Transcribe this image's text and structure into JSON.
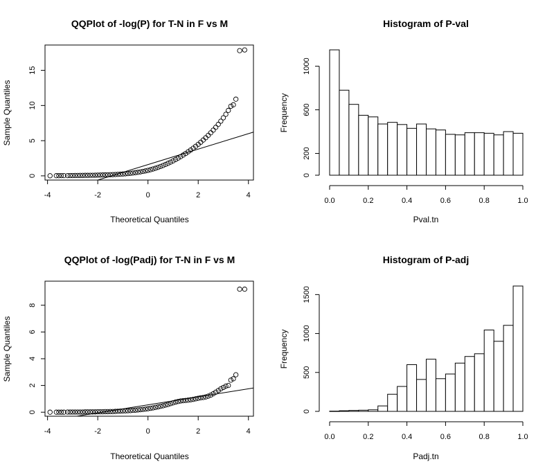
{
  "chart_data": [
    {
      "id": "qq_p",
      "type": "scatter",
      "title": "QQPlot of -log(P) for T-N in F vs M",
      "xlabel": "Theoretical Quantiles",
      "ylabel": "Sample Quantiles",
      "xlim": [
        -4.1,
        4.2
      ],
      "ylim": [
        -0.6,
        18.6
      ],
      "xticks": [
        -4,
        -2,
        0,
        2,
        4
      ],
      "yticks": [
        0,
        5,
        10,
        15
      ],
      "box": true,
      "reference_line": {
        "slope": 1.1,
        "intercept": 1.6
      },
      "points": [
        [
          -3.9,
          0.01
        ],
        [
          -3.65,
          0.02
        ],
        [
          -3.55,
          0.02
        ],
        [
          -3.45,
          0.03
        ],
        [
          -3.35,
          0.03
        ],
        [
          -3.2,
          0.03
        ],
        [
          -3.1,
          0.04
        ],
        [
          -3.0,
          0.04
        ],
        [
          -2.9,
          0.05
        ],
        [
          -2.8,
          0.05
        ],
        [
          -2.7,
          0.06
        ],
        [
          -2.6,
          0.06
        ],
        [
          -2.5,
          0.07
        ],
        [
          -2.4,
          0.07
        ],
        [
          -2.3,
          0.08
        ],
        [
          -2.2,
          0.08
        ],
        [
          -2.1,
          0.09
        ],
        [
          -2.0,
          0.1
        ],
        [
          -1.9,
          0.11
        ],
        [
          -1.8,
          0.12
        ],
        [
          -1.7,
          0.13
        ],
        [
          -1.6,
          0.14
        ],
        [
          -1.5,
          0.16
        ],
        [
          -1.4,
          0.17
        ],
        [
          -1.3,
          0.19
        ],
        [
          -1.2,
          0.21
        ],
        [
          -1.1,
          0.23
        ],
        [
          -1.0,
          0.26
        ],
        [
          -0.9,
          0.29
        ],
        [
          -0.8,
          0.32
        ],
        [
          -0.7,
          0.36
        ],
        [
          -0.6,
          0.4
        ],
        [
          -0.5,
          0.45
        ],
        [
          -0.4,
          0.5
        ],
        [
          -0.3,
          0.56
        ],
        [
          -0.2,
          0.63
        ],
        [
          -0.1,
          0.7
        ],
        [
          0.0,
          0.78
        ],
        [
          0.1,
          0.87
        ],
        [
          0.2,
          0.97
        ],
        [
          0.3,
          1.08
        ],
        [
          0.4,
          1.2
        ],
        [
          0.5,
          1.33
        ],
        [
          0.6,
          1.47
        ],
        [
          0.7,
          1.62
        ],
        [
          0.8,
          1.78
        ],
        [
          0.9,
          1.95
        ],
        [
          1.0,
          2.13
        ],
        [
          1.1,
          2.32
        ],
        [
          1.2,
          2.52
        ],
        [
          1.3,
          2.73
        ],
        [
          1.4,
          2.95
        ],
        [
          1.5,
          3.18
        ],
        [
          1.6,
          3.42
        ],
        [
          1.7,
          3.67
        ],
        [
          1.8,
          3.93
        ],
        [
          1.9,
          4.2
        ],
        [
          2.0,
          4.48
        ],
        [
          2.1,
          4.78
        ],
        [
          2.2,
          5.09
        ],
        [
          2.3,
          5.42
        ],
        [
          2.4,
          5.76
        ],
        [
          2.5,
          6.12
        ],
        [
          2.6,
          6.5
        ],
        [
          2.7,
          6.9
        ],
        [
          2.8,
          7.32
        ],
        [
          2.9,
          7.77
        ],
        [
          3.0,
          8.25
        ],
        [
          3.1,
          8.75
        ],
        [
          3.2,
          9.3
        ],
        [
          3.3,
          9.9
        ],
        [
          3.4,
          10.1
        ],
        [
          3.5,
          10.9
        ],
        [
          3.65,
          17.8
        ],
        [
          3.85,
          17.9
        ]
      ]
    },
    {
      "id": "hist_p",
      "type": "bar",
      "title": "Histogram of P-val",
      "xlabel": "Pval.tn",
      "ylabel": "Frequency",
      "xlim": [
        0,
        1
      ],
      "ylim": [
        0,
        1150
      ],
      "xticks": [
        0.0,
        0.2,
        0.4,
        0.6,
        0.8,
        1.0
      ],
      "yticks": [
        0,
        200,
        600,
        1000
      ],
      "bin_width": 0.05,
      "values": [
        1150,
        780,
        650,
        550,
        535,
        470,
        485,
        465,
        430,
        470,
        425,
        415,
        375,
        370,
        390,
        390,
        385,
        370,
        400,
        385
      ]
    },
    {
      "id": "qq_padj",
      "type": "scatter",
      "title": "QQPlot of -log(Padj) for T-N in F vs M",
      "xlabel": "Theoretical Quantiles",
      "ylabel": "Sample Quantiles",
      "xlim": [
        -4.1,
        4.2
      ],
      "ylim": [
        -0.3,
        9.8
      ],
      "xticks": [
        -4,
        -2,
        0,
        2,
        4
      ],
      "yticks": [
        0,
        2,
        4,
        6,
        8
      ],
      "box": true,
      "reference_line": {
        "slope": 0.3,
        "intercept": 0.55
      },
      "points": [
        [
          -3.9,
          0.0
        ],
        [
          -3.65,
          0.0
        ],
        [
          -3.55,
          0.0
        ],
        [
          -3.45,
          0.0
        ],
        [
          -3.35,
          0.0
        ],
        [
          -3.2,
          0.01
        ],
        [
          -3.1,
          0.01
        ],
        [
          -3.0,
          0.01
        ],
        [
          -2.9,
          0.01
        ],
        [
          -2.8,
          0.01
        ],
        [
          -2.7,
          0.01
        ],
        [
          -2.6,
          0.01
        ],
        [
          -2.5,
          0.02
        ],
        [
          -2.4,
          0.02
        ],
        [
          -2.3,
          0.02
        ],
        [
          -2.2,
          0.02
        ],
        [
          -2.1,
          0.02
        ],
        [
          -2.0,
          0.03
        ],
        [
          -1.9,
          0.03
        ],
        [
          -1.8,
          0.03
        ],
        [
          -1.7,
          0.04
        ],
        [
          -1.6,
          0.04
        ],
        [
          -1.5,
          0.05
        ],
        [
          -1.4,
          0.05
        ],
        [
          -1.3,
          0.06
        ],
        [
          -1.2,
          0.07
        ],
        [
          -1.1,
          0.08
        ],
        [
          -1.0,
          0.09
        ],
        [
          -0.9,
          0.1
        ],
        [
          -0.8,
          0.11
        ],
        [
          -0.7,
          0.12
        ],
        [
          -0.6,
          0.14
        ],
        [
          -0.5,
          0.15
        ],
        [
          -0.4,
          0.17
        ],
        [
          -0.3,
          0.19
        ],
        [
          -0.2,
          0.21
        ],
        [
          -0.1,
          0.23
        ],
        [
          0.0,
          0.26
        ],
        [
          0.1,
          0.29
        ],
        [
          0.2,
          0.32
        ],
        [
          0.3,
          0.36
        ],
        [
          0.4,
          0.4
        ],
        [
          0.5,
          0.44
        ],
        [
          0.6,
          0.48
        ],
        [
          0.7,
          0.53
        ],
        [
          0.8,
          0.58
        ],
        [
          0.9,
          0.64
        ],
        [
          1.0,
          0.7
        ],
        [
          1.1,
          0.76
        ],
        [
          1.2,
          0.8
        ],
        [
          1.3,
          0.84
        ],
        [
          1.4,
          0.86
        ],
        [
          1.5,
          0.88
        ],
        [
          1.6,
          0.9
        ],
        [
          1.7,
          0.93
        ],
        [
          1.8,
          0.96
        ],
        [
          1.9,
          1.0
        ],
        [
          2.0,
          1.04
        ],
        [
          2.1,
          1.08
        ],
        [
          2.2,
          1.1
        ],
        [
          2.3,
          1.14
        ],
        [
          2.4,
          1.2
        ],
        [
          2.5,
          1.28
        ],
        [
          2.6,
          1.38
        ],
        [
          2.7,
          1.5
        ],
        [
          2.8,
          1.62
        ],
        [
          2.9,
          1.75
        ],
        [
          3.0,
          1.85
        ],
        [
          3.1,
          1.95
        ],
        [
          3.2,
          2.0
        ],
        [
          3.3,
          2.4
        ],
        [
          3.4,
          2.5
        ],
        [
          3.5,
          2.8
        ],
        [
          3.65,
          9.2
        ],
        [
          3.85,
          9.2
        ]
      ]
    },
    {
      "id": "hist_padj",
      "type": "bar",
      "title": "Histogram of P-adj",
      "xlabel": "Padj.tn",
      "ylabel": "Frequency",
      "xlim": [
        0,
        1
      ],
      "ylim": [
        0,
        1610
      ],
      "xticks": [
        0.0,
        0.2,
        0.4,
        0.6,
        0.8,
        1.0
      ],
      "yticks": [
        0,
        500,
        1000,
        1500
      ],
      "bin_width": 0.05,
      "values": [
        3,
        8,
        12,
        15,
        20,
        70,
        220,
        320,
        600,
        410,
        670,
        420,
        480,
        620,
        705,
        740,
        1045,
        900,
        1105,
        1610
      ]
    }
  ]
}
